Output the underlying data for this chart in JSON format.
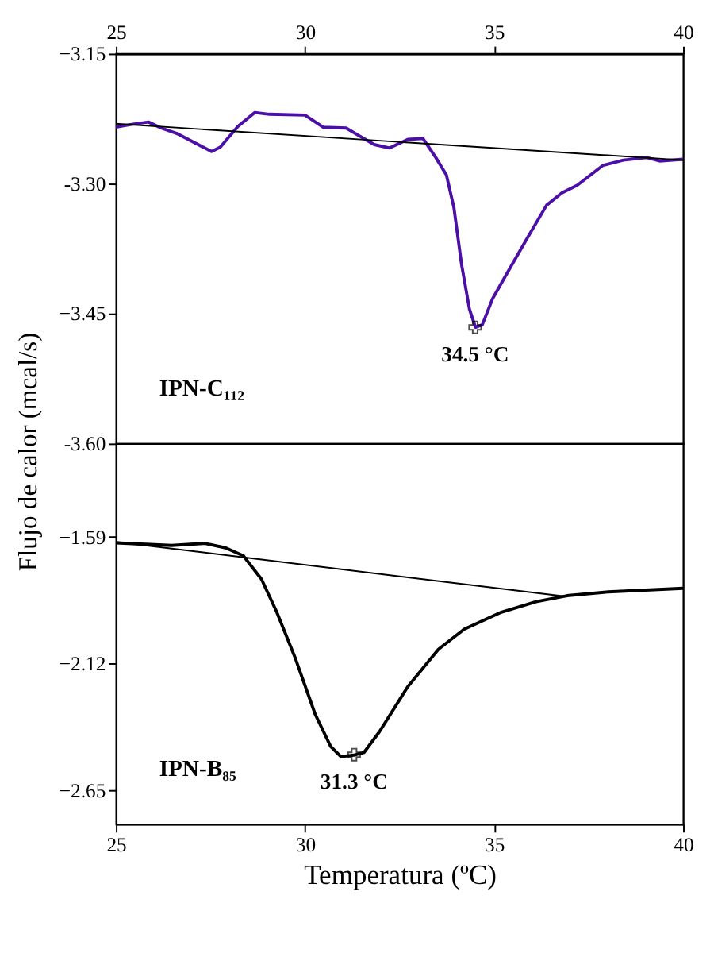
{
  "chart_data": [
    {
      "type": "line",
      "xlabel": null,
      "ylabel": "Flujo de calor (mcal/s)",
      "xlim": [
        25,
        40
      ],
      "xticks": [
        25,
        30,
        35,
        40
      ],
      "ylim": [
        -3.6,
        -3.15
      ],
      "yticks": [
        -3.15,
        {
          "value": -3.3,
          "label": "-3.30"
        },
        -3.45,
        {
          "value": -3.6,
          "label": "-3.60"
        }
      ],
      "grid": false,
      "marker": "none",
      "line_style": "solid",
      "series": [
        {
          "name": "IPN-C₁₁₂",
          "color": "#4b0fa8",
          "x": [
            25,
            25.38,
            25.86,
            26.2,
            26.6,
            27.53,
            27.76,
            28.23,
            28.67,
            29.05,
            30.0,
            30.48,
            31.09,
            31.36,
            31.83,
            32.24,
            32.72,
            33.12,
            33.46,
            33.74,
            33.94,
            34.14,
            34.35,
            34.51,
            34.69,
            34.96,
            35.3,
            35.84,
            36.39,
            36.79,
            37.2,
            37.88,
            38.42,
            39.04,
            39.38,
            40
          ],
          "values": [
            -3.235,
            -3.232,
            -3.229,
            -3.236,
            -3.242,
            -3.263,
            -3.258,
            -3.234,
            -3.218,
            -3.22,
            -3.221,
            -3.235,
            -3.236,
            -3.243,
            -3.255,
            -3.259,
            -3.249,
            -3.248,
            -3.27,
            -3.29,
            -3.328,
            -3.393,
            -3.445,
            -3.466,
            -3.463,
            -3.433,
            -3.407,
            -3.366,
            -3.325,
            -3.311,
            -3.302,
            -3.279,
            -3.273,
            -3.27,
            -3.274,
            -3.272
          ]
        },
        {
          "type": "line",
          "color": "#000000",
          "x": [
            25,
            40
          ],
          "values": [
            -3.231,
            -3.273
          ]
        }
      ],
      "annotations": [
        {
          "text": "34.5 °C",
          "x": 34.5,
          "y": -3.466
        }
      ]
    },
    {
      "type": "line",
      "xlabel": "Temperatura (ºC)",
      "xlim": [
        25,
        40
      ],
      "xticks": [
        25,
        30,
        35,
        40
      ],
      "ylim": [
        -2.79,
        -1.2
      ],
      "yticks": [
        -1.59,
        -2.12,
        -2.65
      ],
      "grid": false,
      "marker": "none",
      "line_style": "solid",
      "series": [
        {
          "name": "IPN-B₈₅",
          "color": "#000000",
          "x": [
            25,
            26.47,
            27.35,
            27.9,
            28.37,
            28.85,
            29.25,
            29.73,
            30.27,
            30.68,
            30.95,
            31.29,
            31.56,
            31.97,
            32.72,
            33.53,
            34.21,
            35.16,
            36.11,
            36.93,
            38.02,
            40
          ],
          "values": [
            -1.615,
            -1.626,
            -1.617,
            -1.636,
            -1.669,
            -1.767,
            -1.903,
            -2.091,
            -2.331,
            -2.466,
            -2.508,
            -2.502,
            -2.491,
            -2.404,
            -2.216,
            -2.06,
            -1.976,
            -1.907,
            -1.861,
            -1.836,
            -1.82,
            -1.805
          ]
        },
        {
          "type": "line",
          "color": "#000000",
          "x": [
            25,
            36.93
          ],
          "values": [
            -1.611,
            -1.84
          ]
        }
      ],
      "annotations": [
        {
          "text": "31.3 °C",
          "x": 31.3,
          "y": -2.5
        }
      ]
    }
  ]
}
